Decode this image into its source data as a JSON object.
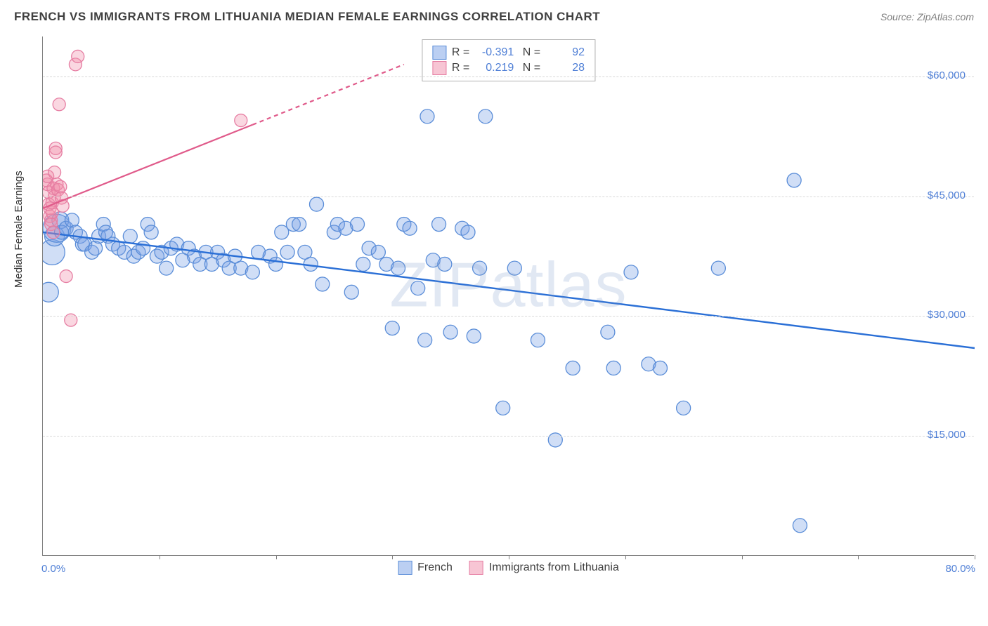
{
  "title": "FRENCH VS IMMIGRANTS FROM LITHUANIA MEDIAN FEMALE EARNINGS CORRELATION CHART",
  "source": "Source: ZipAtlas.com",
  "ylabel": "Median Female Earnings",
  "watermark": "ZIPatlas",
  "chart": {
    "type": "scatter",
    "xlim": [
      0,
      80
    ],
    "ylim": [
      0,
      65000
    ],
    "x_tick_positions": [
      0,
      10,
      20,
      30,
      40,
      50,
      60,
      70,
      80
    ],
    "x_start_label": "0.0%",
    "x_end_label": "80.0%",
    "y_ticks": [
      15000,
      30000,
      45000,
      60000
    ],
    "y_tick_labels": [
      "$15,000",
      "$30,000",
      "$45,000",
      "$60,000"
    ],
    "grid_color": "#d8d8d8",
    "background_color": "#ffffff",
    "axis_color": "#808080",
    "tick_label_color": "#4f7fd6",
    "series": [
      {
        "name": "French",
        "color_fill": "rgba(120,160,230,0.35)",
        "color_stroke": "#5a8dd8",
        "marker_radius": 10,
        "trend": {
          "x1": 0,
          "y1": 40500,
          "x2": 80,
          "y2": 26000,
          "stroke": "#2a6fd6",
          "width": 2.4,
          "dash_from_x": null
        },
        "stats": {
          "R": "-0.391",
          "N": "92"
        },
        "points": [
          [
            0.5,
            33000,
            14
          ],
          [
            0.8,
            38000,
            18
          ],
          [
            1.0,
            40000,
            14
          ],
          [
            1.2,
            41000,
            20
          ],
          [
            1.5,
            42000,
            12
          ],
          [
            1.6,
            40500,
            10
          ],
          [
            2.0,
            41000,
            10
          ],
          [
            2.5,
            42000,
            10
          ],
          [
            2.8,
            40500,
            10
          ],
          [
            3.2,
            40000,
            10
          ],
          [
            3.4,
            39000,
            10
          ],
          [
            3.6,
            39000,
            10
          ],
          [
            4.2,
            38000,
            10
          ],
          [
            4.5,
            38500,
            10
          ],
          [
            4.8,
            40000,
            10
          ],
          [
            5.2,
            41500,
            10
          ],
          [
            5.4,
            40500,
            10
          ],
          [
            5.6,
            40000,
            10
          ],
          [
            6.0,
            39000,
            10
          ],
          [
            6.5,
            38500,
            10
          ],
          [
            7.0,
            38000,
            10
          ],
          [
            7.5,
            40000,
            10
          ],
          [
            7.8,
            37500,
            10
          ],
          [
            8.2,
            38000,
            10
          ],
          [
            8.6,
            38500,
            10
          ],
          [
            9.0,
            41500,
            10
          ],
          [
            9.3,
            40500,
            10
          ],
          [
            9.8,
            37500,
            10
          ],
          [
            10.2,
            38000,
            10
          ],
          [
            10.6,
            36000,
            10
          ],
          [
            11.0,
            38500,
            10
          ],
          [
            11.5,
            39000,
            10
          ],
          [
            12.0,
            37000,
            10
          ],
          [
            12.5,
            38500,
            10
          ],
          [
            13.0,
            37500,
            10
          ],
          [
            13.5,
            36500,
            10
          ],
          [
            14.0,
            38000,
            10
          ],
          [
            14.5,
            36500,
            10
          ],
          [
            15.0,
            38000,
            10
          ],
          [
            15.5,
            37000,
            10
          ],
          [
            16.0,
            36000,
            10
          ],
          [
            16.5,
            37500,
            10
          ],
          [
            17.0,
            36000,
            10
          ],
          [
            18.0,
            35500,
            10
          ],
          [
            18.5,
            38000,
            10
          ],
          [
            19.5,
            37500,
            10
          ],
          [
            20.0,
            36500,
            10
          ],
          [
            20.5,
            40500,
            10
          ],
          [
            21.0,
            38000,
            10
          ],
          [
            21.5,
            41500,
            10
          ],
          [
            22.0,
            41500,
            10
          ],
          [
            22.5,
            38000,
            10
          ],
          [
            23.0,
            36500,
            10
          ],
          [
            23.5,
            44000,
            10
          ],
          [
            24.0,
            34000,
            10
          ],
          [
            25.0,
            40500,
            10
          ],
          [
            25.3,
            41500,
            10
          ],
          [
            26.0,
            41000,
            10
          ],
          [
            26.5,
            33000,
            10
          ],
          [
            27.0,
            41500,
            10
          ],
          [
            27.5,
            36500,
            10
          ],
          [
            28.0,
            38500,
            10
          ],
          [
            28.8,
            38000,
            10
          ],
          [
            29.5,
            36500,
            10
          ],
          [
            30.0,
            28500,
            10
          ],
          [
            30.5,
            36000,
            10
          ],
          [
            31.0,
            41500,
            10
          ],
          [
            31.5,
            41000,
            10
          ],
          [
            32.2,
            33500,
            10
          ],
          [
            32.8,
            27000,
            10
          ],
          [
            33.0,
            55000,
            10
          ],
          [
            33.5,
            37000,
            10
          ],
          [
            34.0,
            41500,
            10
          ],
          [
            34.5,
            36500,
            10
          ],
          [
            35.0,
            28000,
            10
          ],
          [
            36.0,
            41000,
            10
          ],
          [
            36.5,
            40500,
            10
          ],
          [
            37.0,
            27500,
            10
          ],
          [
            37.5,
            36000,
            10
          ],
          [
            38.0,
            55000,
            10
          ],
          [
            39.5,
            18500,
            10
          ],
          [
            40.5,
            36000,
            10
          ],
          [
            42.5,
            27000,
            10
          ],
          [
            44.0,
            14500,
            10
          ],
          [
            45.5,
            23500,
            10
          ],
          [
            48.5,
            28000,
            10
          ],
          [
            49.0,
            23500,
            10
          ],
          [
            50.5,
            35500,
            10
          ],
          [
            52.0,
            24000,
            10
          ],
          [
            53.0,
            23500,
            10
          ],
          [
            55.0,
            18500,
            10
          ],
          [
            58.0,
            36000,
            10
          ],
          [
            64.5,
            47000,
            10
          ],
          [
            65.0,
            3800,
            10
          ]
        ]
      },
      {
        "name": "Immigrants from Lithuania",
        "color_fill": "rgba(240,140,170,0.35)",
        "color_stroke": "#e67da2",
        "marker_radius": 9,
        "trend": {
          "x1": 0,
          "y1": 43500,
          "x2": 31,
          "y2": 61500,
          "stroke": "#e05a8a",
          "width": 2.2,
          "dash_from_x": 18
        },
        "stats": {
          "R": "0.219",
          "N": "28"
        },
        "points": [
          [
            0.3,
            47000,
            9
          ],
          [
            0.4,
            46500,
            9
          ],
          [
            0.4,
            47500,
            9
          ],
          [
            0.5,
            45500,
            9
          ],
          [
            0.5,
            44000,
            9
          ],
          [
            0.6,
            42500,
            9
          ],
          [
            0.6,
            43500,
            9
          ],
          [
            0.7,
            42000,
            9
          ],
          [
            0.7,
            41500,
            9
          ],
          [
            0.8,
            43000,
            9
          ],
          [
            0.8,
            44200,
            9
          ],
          [
            0.9,
            40500,
            9
          ],
          [
            0.9,
            46000,
            9
          ],
          [
            1.0,
            45000,
            9
          ],
          [
            1.0,
            48000,
            9
          ],
          [
            1.1,
            51000,
            9
          ],
          [
            1.1,
            50500,
            9
          ],
          [
            1.2,
            46500,
            9
          ],
          [
            1.3,
            45800,
            9
          ],
          [
            1.4,
            56500,
            9
          ],
          [
            1.5,
            46200,
            9
          ],
          [
            1.6,
            44800,
            9
          ],
          [
            1.7,
            43800,
            9
          ],
          [
            2.0,
            35000,
            9
          ],
          [
            2.4,
            29500,
            9
          ],
          [
            2.8,
            61500,
            9
          ],
          [
            3.0,
            62500,
            9
          ],
          [
            17.0,
            54500,
            9
          ]
        ]
      }
    ]
  },
  "stats_box": {
    "legend_swatches": [
      {
        "fill": "rgba(120,160,230,0.5)",
        "border": "#5a8dd8"
      },
      {
        "fill": "rgba(240,140,170,0.5)",
        "border": "#e67da2"
      }
    ]
  },
  "bottom_legend": [
    {
      "label": "French",
      "fill": "rgba(120,160,230,0.5)",
      "border": "#5a8dd8"
    },
    {
      "label": "Immigrants from Lithuania",
      "fill": "rgba(240,140,170,0.5)",
      "border": "#e67da2"
    }
  ]
}
